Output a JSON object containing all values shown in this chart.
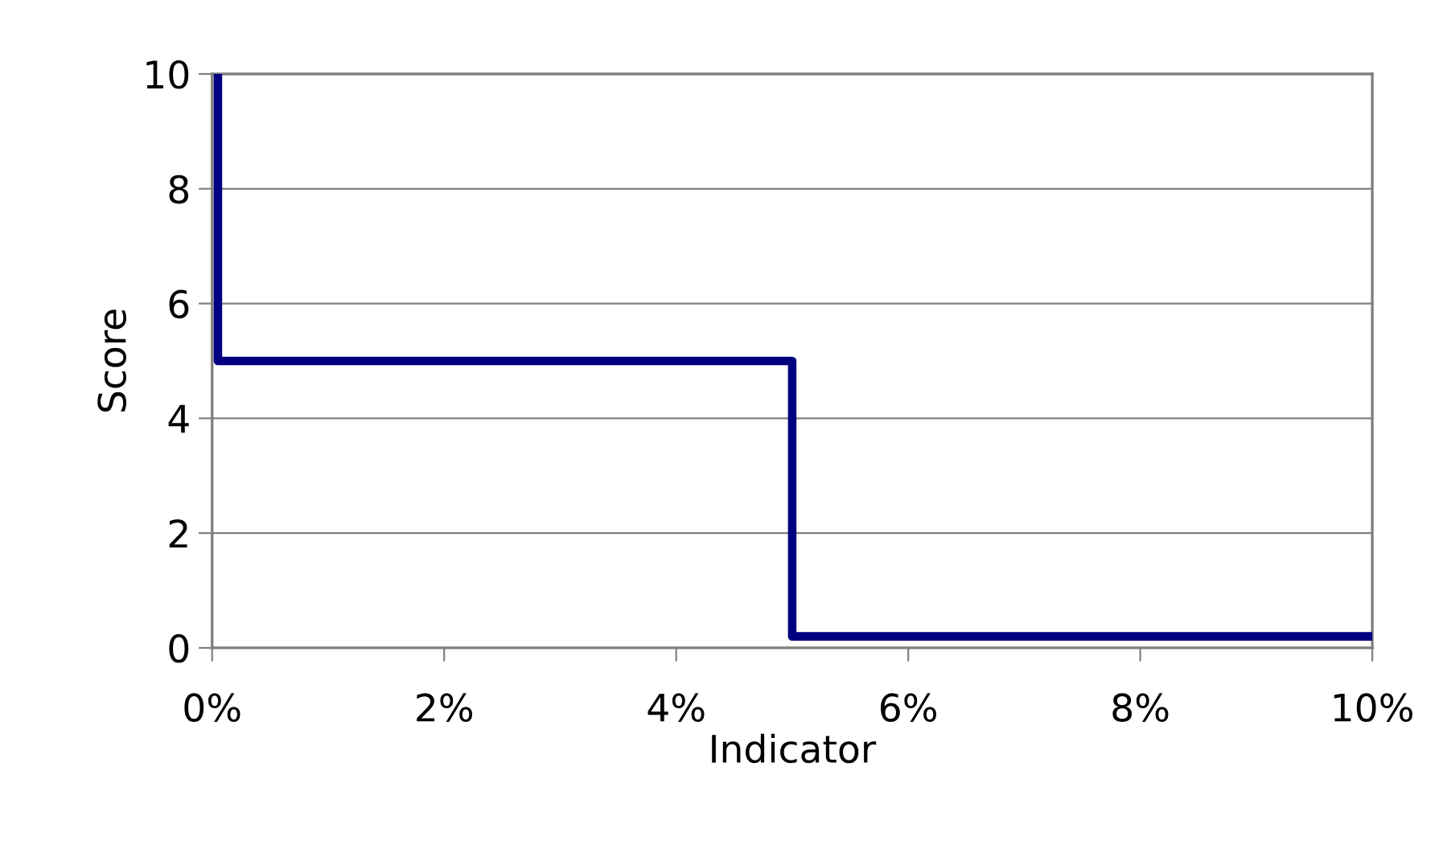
{
  "chart_data": {
    "type": "line",
    "xlabel": "Indicator",
    "ylabel": "Score",
    "series": [
      {
        "color": "#000080",
        "x": [
          0.05,
          0.05,
          5,
          5,
          10
        ],
        "values": [
          10,
          5,
          5,
          0.2,
          0.2
        ]
      }
    ],
    "xlim": [
      0,
      10
    ],
    "xticks": [
      {
        "value": 0,
        "label": "0%"
      },
      {
        "value": 2,
        "label": "2%"
      },
      {
        "value": 4,
        "label": "4%"
      },
      {
        "value": 6,
        "label": "6%"
      },
      {
        "value": 8,
        "label": "8%"
      },
      {
        "value": 10,
        "label": "10%"
      }
    ],
    "ylim": [
      0,
      10
    ],
    "yticks": [
      0,
      2,
      4,
      6,
      8,
      10
    ],
    "grid": "y",
    "marker": "none",
    "line_style": "solid"
  }
}
